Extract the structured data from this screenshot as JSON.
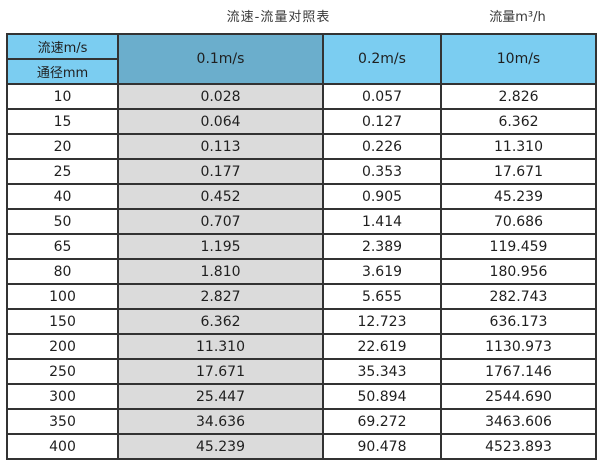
{
  "captions": {
    "left": "流速-流量对照表",
    "right": "流量m³/h"
  },
  "table": {
    "corner_top": "流速m/s",
    "corner_bottom": "通径mm",
    "columns": [
      "0.1m/s",
      "0.2m/s",
      "10m/s"
    ],
    "rows": [
      [
        "10",
        "0.028",
        "0.057",
        "2.826"
      ],
      [
        "15",
        "0.064",
        "0.127",
        "6.362"
      ],
      [
        "20",
        "0.113",
        "0.226",
        "11.310"
      ],
      [
        "25",
        "0.177",
        "0.353",
        "17.671"
      ],
      [
        "40",
        "0.452",
        "0.905",
        "45.239"
      ],
      [
        "50",
        "0.707",
        "1.414",
        "70.686"
      ],
      [
        "65",
        "1.195",
        "2.389",
        "119.459"
      ],
      [
        "80",
        "1.810",
        "3.619",
        "180.956"
      ],
      [
        "100",
        "2.827",
        "5.655",
        "282.743"
      ],
      [
        "150",
        "6.362",
        "12.723",
        "636.173"
      ],
      [
        "200",
        "11.310",
        "22.619",
        "1130.973"
      ],
      [
        "250",
        "17.671",
        "35.343",
        "1767.146"
      ],
      [
        "300",
        "25.447",
        "50.894",
        "2544.690"
      ],
      [
        "350",
        "34.636",
        "69.272",
        "3463.606"
      ],
      [
        "400",
        "45.239",
        "90.478",
        "4523.893"
      ]
    ]
  },
  "colors": {
    "header_blue": "#7BCDF1",
    "header_dark_blue": "#6BAECC",
    "column_gray": "#DBDBDB",
    "border": "#333333"
  }
}
